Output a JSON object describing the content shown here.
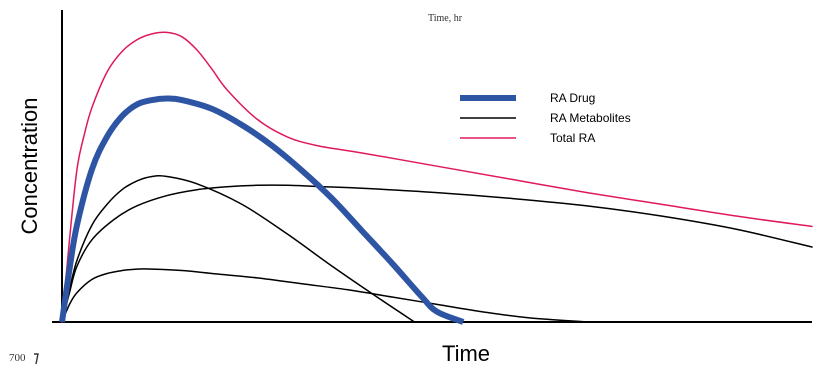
{
  "chart_data": {
    "type": "line",
    "title": "",
    "xlabel": "Time",
    "ylabel": "Concentration",
    "top_caption": "Time, hr",
    "corner_text": "700",
    "x_ticks": [],
    "y_ticks": [],
    "xlim": [
      0,
      100
    ],
    "ylim": [
      0,
      100
    ],
    "grid": false,
    "legend_position": "upper-right",
    "series": [
      {
        "name": "RA Drug",
        "color": "#2e55a4",
        "style": "thick",
        "x": [
          0,
          1,
          2,
          4,
          6,
          8,
          10,
          12,
          14,
          16,
          20,
          24,
          28,
          32,
          36,
          40,
          44,
          48,
          50,
          53.5
        ],
        "y": [
          0,
          18,
          33,
          52,
          63,
          70,
          74,
          75.5,
          76,
          75.5,
          72.5,
          67,
          60,
          51.5,
          42,
          31,
          20,
          8.5,
          3.5,
          0
        ]
      },
      {
        "name": "RA Metabolites",
        "color": "#000000",
        "style": "thin",
        "x": [
          0,
          1,
          2,
          4,
          6,
          8,
          10,
          12,
          14,
          18,
          24,
          30,
          36,
          42,
          47
        ],
        "y": [
          0,
          11,
          21,
          33,
          40,
          45,
          48,
          49.5,
          49.5,
          47,
          40,
          30,
          19,
          8.5,
          0
        ]
      },
      {
        "name": "Total RA",
        "color": "#e0195c",
        "style": "thin",
        "x": [
          0,
          1,
          2,
          3,
          4,
          6,
          8,
          10,
          12,
          14,
          16,
          18,
          20,
          22,
          26,
          30,
          34,
          40,
          50,
          60,
          70,
          80,
          90,
          100
        ],
        "y": [
          0,
          28,
          52,
          64,
          73,
          85,
          92,
          96,
          98,
          98.5,
          97,
          92.5,
          86,
          79,
          69,
          63,
          60,
          57.5,
          53,
          48.5,
          44,
          40,
          36,
          32.5
        ]
      },
      {
        "name": "",
        "color": "#000000",
        "style": "thin",
        "x": [
          0,
          1,
          2,
          4,
          7,
          10,
          14,
          18,
          22,
          26,
          30,
          35,
          40,
          50,
          60,
          70,
          80,
          90,
          100
        ],
        "y": [
          0,
          10,
          19,
          28,
          35,
          39.5,
          43,
          45,
          46,
          46.5,
          46.5,
          46,
          45.5,
          44,
          42,
          39.5,
          36,
          31.5,
          25.5
        ]
      },
      {
        "name": "",
        "color": "#000000",
        "style": "thin",
        "x": [
          0,
          1,
          2,
          4,
          6,
          8,
          10,
          12,
          16,
          20,
          26,
          32,
          38,
          44,
          50,
          56,
          62,
          70
        ],
        "y": [
          0,
          6,
          10,
          14.5,
          16.5,
          17.5,
          18,
          18,
          17.5,
          16.5,
          15,
          13,
          11,
          8.5,
          6,
          3.5,
          1.5,
          0
        ]
      }
    ]
  }
}
